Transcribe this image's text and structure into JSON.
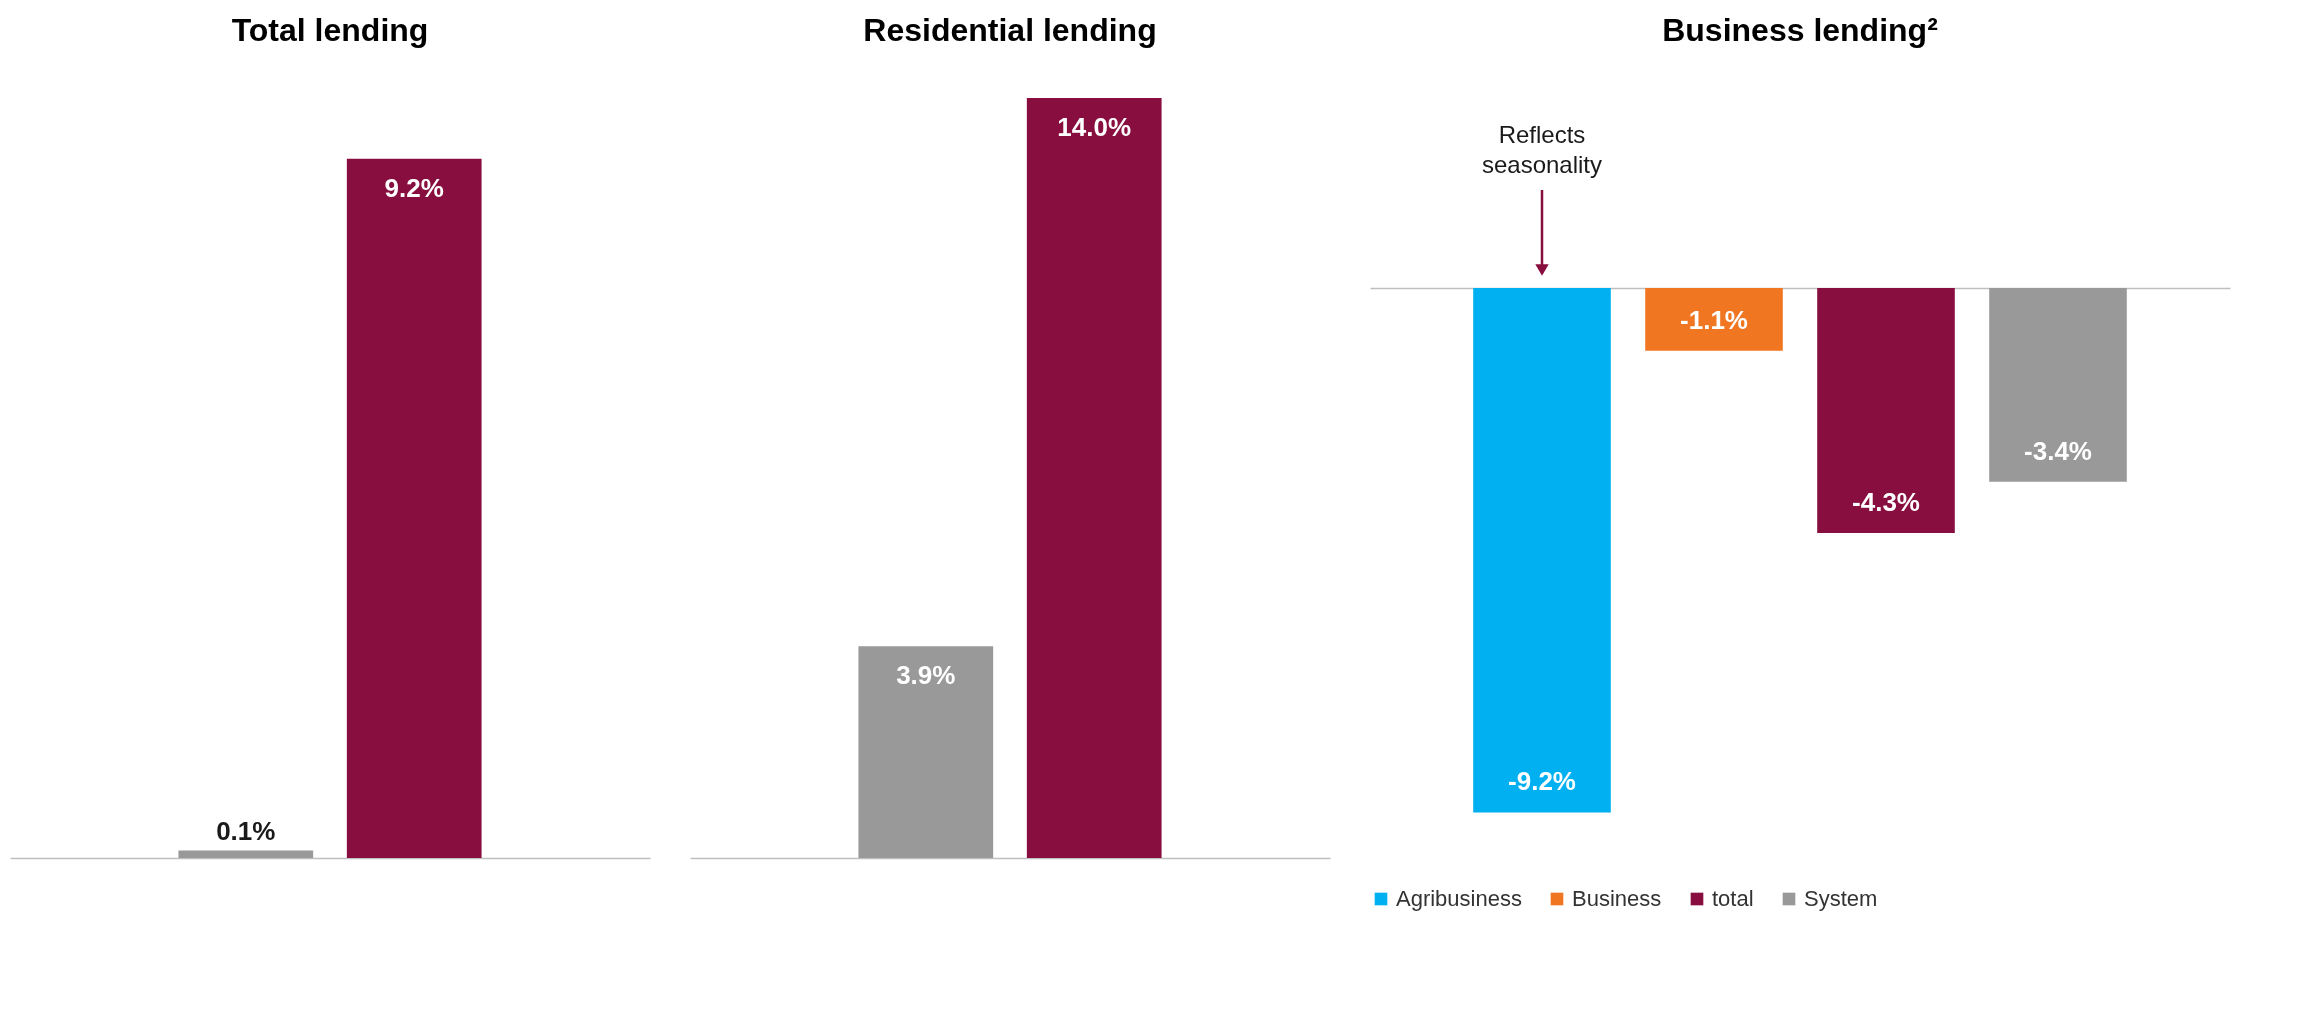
{
  "chart_data": [
    {
      "type": "bar",
      "title": "Total lending",
      "categories": [
        null,
        null
      ],
      "values": [
        0.1,
        9.2
      ],
      "colors": [
        "#999999",
        "#870e3e"
      ],
      "value_labels": [
        "0.1%",
        "9.2%"
      ],
      "tick_labels": false
    },
    {
      "type": "bar",
      "title": "Residential lending",
      "categories": [
        null,
        null
      ],
      "values": [
        3.9,
        14.0
      ],
      "colors": [
        "#999999",
        "#870e3e"
      ],
      "value_labels": [
        "3.9%",
        "14.0%"
      ],
      "tick_labels": false
    },
    {
      "type": "bar",
      "title": "Business lending²",
      "categories": [
        null
      ],
      "tick_labels": false,
      "legend": "bottom",
      "annotations": [
        "Reflects seasonality"
      ],
      "series": [
        {
          "name": "Agribusiness",
          "color": "#00b0f0",
          "values": [
            -9.2
          ],
          "value_labels": [
            "-9.2%"
          ]
        },
        {
          "name": "Business",
          "color": "#f07622",
          "values": [
            -1.1
          ],
          "value_labels": [
            "-1.1%"
          ]
        },
        {
          "name": "total",
          "color": "#870e3e",
          "values": [
            -4.3
          ],
          "value_labels": [
            "-4.3%"
          ]
        },
        {
          "name": "System",
          "color": "#999999",
          "values": [
            -3.4
          ],
          "value_labels": [
            "-3.4%"
          ]
        }
      ]
    }
  ]
}
